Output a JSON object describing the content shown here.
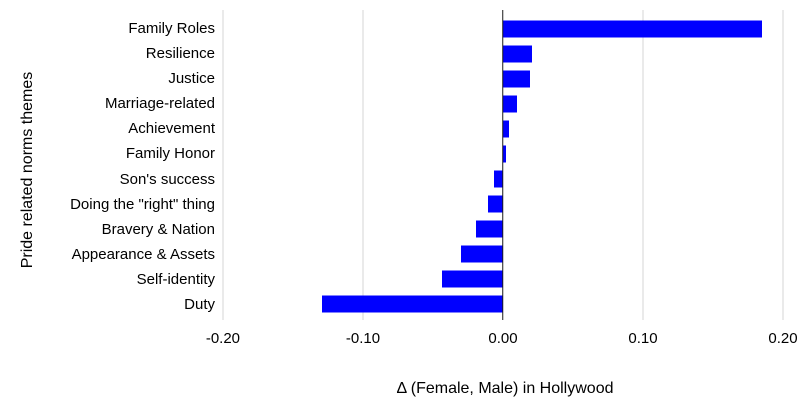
{
  "chart_data": {
    "type": "bar",
    "orientation": "horizontal",
    "title": "",
    "xlabel": "Δ (Female, Male) in Hollywood",
    "ylabel": "Pride related norms themes",
    "categories": [
      "Family Roles",
      "Resilience",
      "Justice",
      "Marriage-related",
      "Achievement",
      "Family Honor",
      "Son's success",
      "Doing the \"right\" thing",
      "Bravery & Nation",
      "Appearance & Assets",
      "Self-identity",
      "Duty"
    ],
    "values": [
      0.185,
      0.0205,
      0.019,
      0.01,
      0.004,
      0.002,
      -0.0065,
      -0.0105,
      -0.019,
      -0.03,
      -0.0435,
      -0.129
    ],
    "xticks": [
      -0.2,
      -0.1,
      0.0,
      0.1,
      0.2
    ],
    "xtick_labels": [
      "-0.20",
      "-0.10",
      "0.00",
      "0.10",
      "0.20"
    ],
    "xlim": [
      -0.2021,
      0.205
    ],
    "grid": true,
    "legend": false,
    "bar_color": "#0000FF",
    "gridline_color": "#D4D4D4",
    "zero_line_color": "#1A1A1A",
    "text_color": "#000000",
    "background_color": "#FFFFFF"
  }
}
